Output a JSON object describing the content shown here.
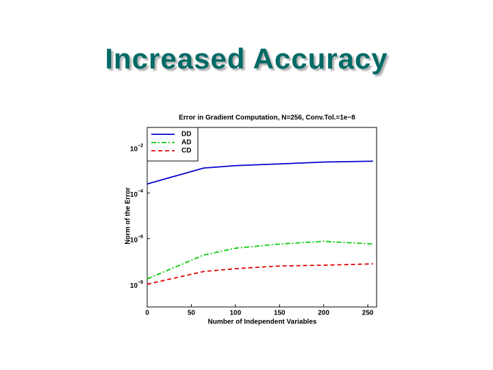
{
  "slide_title": "Increased Accuracy",
  "chart_data": {
    "type": "line",
    "title": "Error in Gradient Computation, N=256, Conv.Tol.=1e−8",
    "x_label": "Number of Independent Variables",
    "y_label": "Norm of the Error",
    "y_scale": "log",
    "xlim": [
      0,
      260
    ],
    "ylim": [
      1e-09,
      0.1
    ],
    "xticks": [
      0,
      50,
      100,
      150,
      200,
      250
    ],
    "yticks": [
      {
        "value": 0.01,
        "label": "10",
        "exponent": "−2"
      },
      {
        "value": 0.0001,
        "label": "10",
        "exponent": "−4"
      },
      {
        "value": 1e-06,
        "label": "10",
        "exponent": "−6"
      },
      {
        "value": 1e-08,
        "label": "10",
        "exponent": "−8"
      }
    ],
    "legend": "upper-left",
    "x": [
      0,
      64,
      100,
      150,
      200,
      256
    ],
    "series": [
      {
        "name": "DD",
        "color": "#0000cc",
        "linestyle": "solid",
        "values": [
          0.00025,
          0.00125,
          0.0016,
          0.0019,
          0.0023,
          0.0025
        ]
      },
      {
        "name": "AD",
        "color": "#00cc00",
        "linestyle": "dashdot",
        "values": [
          1.7e-08,
          1.9e-07,
          3.8e-07,
          5.8e-07,
          7.6e-07,
          5.8e-07
        ]
      },
      {
        "name": "CD",
        "color": "#dd0000",
        "linestyle": "dashed",
        "values": [
          1e-08,
          3.6e-08,
          4.8e-08,
          6.3e-08,
          6.8e-08,
          7.8e-08
        ]
      }
    ]
  }
}
